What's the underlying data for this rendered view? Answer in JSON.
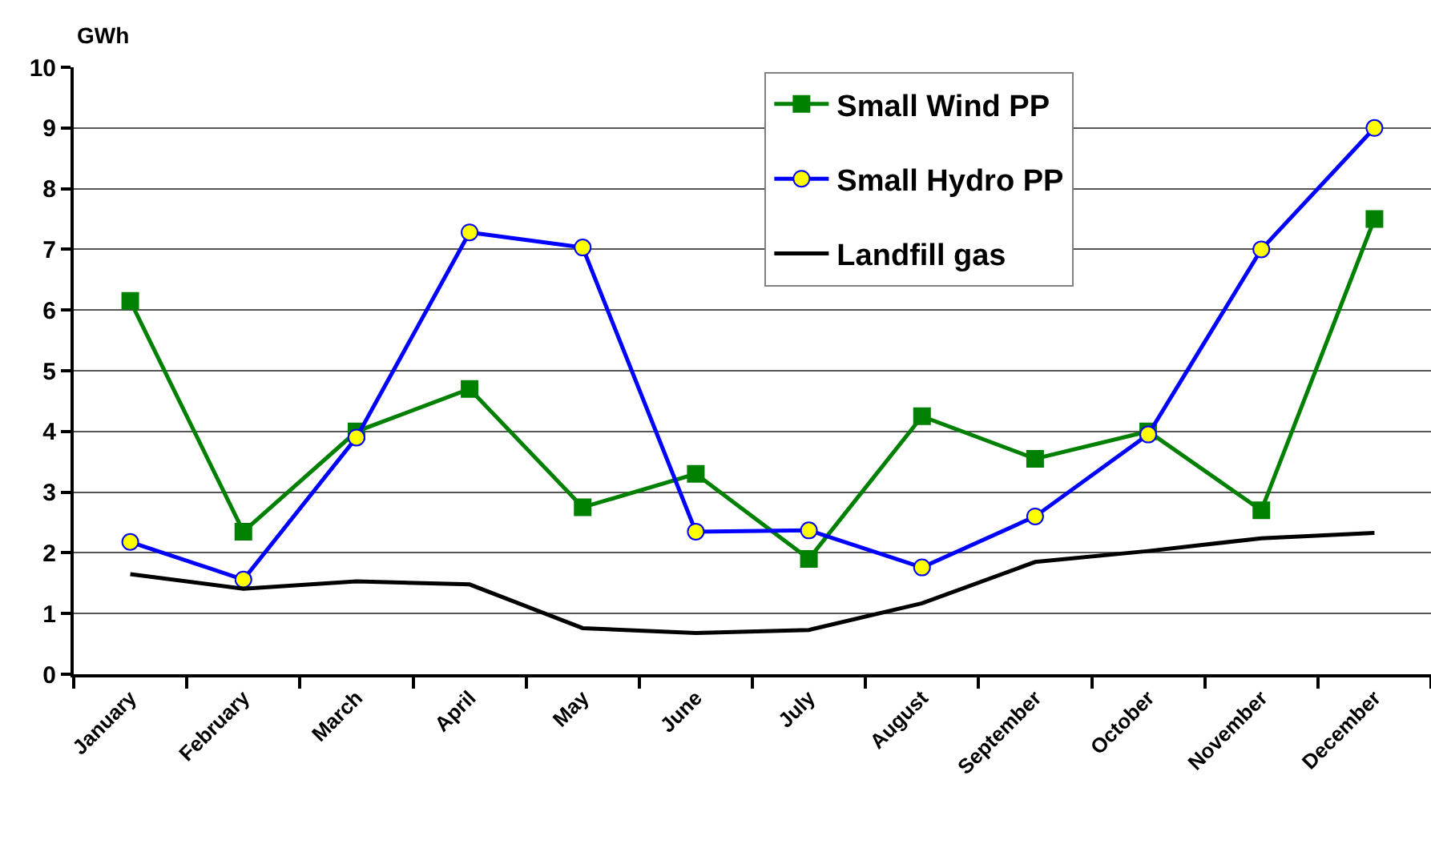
{
  "chart_data": {
    "type": "line",
    "ylabel": "GWh",
    "categories": [
      "January",
      "February",
      "March",
      "April",
      "May",
      "June",
      "July",
      "August",
      "September",
      "October",
      "November",
      "December"
    ],
    "ylim": [
      0,
      10
    ],
    "yticks": [
      0,
      1,
      2,
      3,
      4,
      5,
      6,
      7,
      8,
      9,
      10
    ],
    "grid": "y",
    "legend": "top right",
    "series": [
      {
        "name": "Small Wind PP",
        "color": "#008000",
        "marker": "square",
        "values": [
          6.15,
          2.35,
          4.0,
          4.7,
          2.75,
          3.3,
          1.9,
          4.25,
          3.55,
          4.0,
          2.7,
          7.5
        ]
      },
      {
        "name": "Small Hydro PP",
        "color": "#0000ff",
        "marker": "circle",
        "colors": [
          "#ffff00",
          "#ffff00",
          "#ffff00",
          "#ffff00",
          "#ffff00",
          "#ffff00",
          "#ffff00",
          "#ffff00",
          "#ffff00",
          "#ffff00",
          "#ffff00",
          "#ffff00"
        ],
        "values": [
          2.18,
          1.56,
          3.9,
          7.28,
          7.03,
          2.35,
          2.37,
          1.76,
          2.6,
          3.95,
          7.0,
          9.0
        ]
      },
      {
        "name": "Landfill gas",
        "color": "#000000",
        "marker": "none",
        "values": [
          1.65,
          1.41,
          1.53,
          1.48,
          0.76,
          0.68,
          0.73,
          1.17,
          1.85,
          2.03,
          2.24,
          2.33
        ]
      }
    ]
  }
}
